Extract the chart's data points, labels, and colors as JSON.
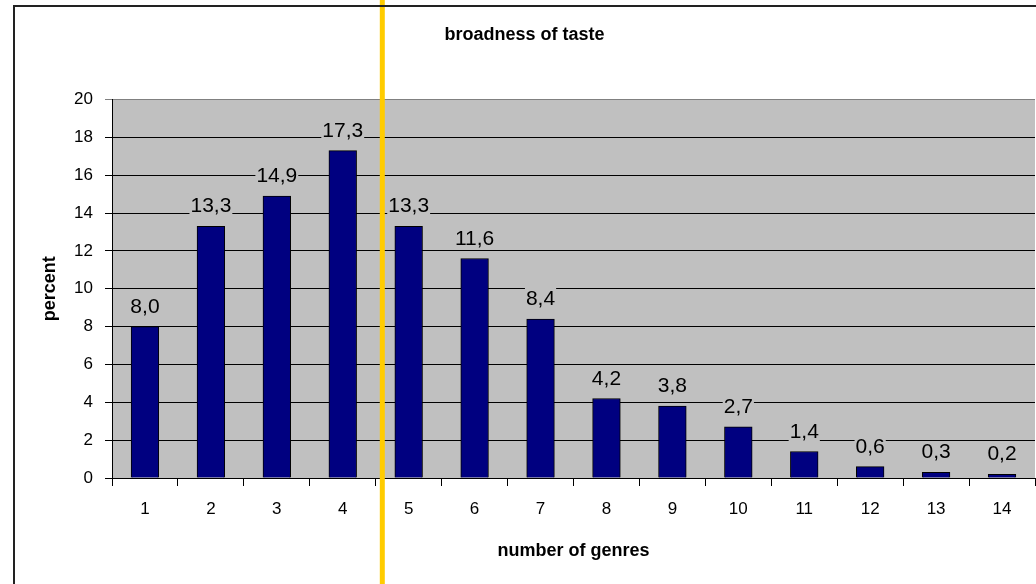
{
  "chart_data": {
    "type": "bar",
    "title": "broadness of taste",
    "xlabel": "number of genres",
    "ylabel": "percent",
    "x": [
      1,
      2,
      3,
      4,
      5,
      6,
      7,
      8,
      9,
      10,
      11,
      12,
      13,
      14
    ],
    "values": [
      8.0,
      13.3,
      14.9,
      17.3,
      13.3,
      11.6,
      8.4,
      4.2,
      3.8,
      2.7,
      1.4,
      0.6,
      0.3,
      0.2
    ],
    "value_labels": [
      "8,0",
      "13,3",
      "14,9",
      "17,3",
      "13,3",
      "11,6",
      "8,4",
      "4,2",
      "3,8",
      "2,7",
      "1,4",
      "0,6",
      "0,3",
      "0,2"
    ],
    "color": "#000080",
    "xlim": [
      0.5,
      14.5
    ],
    "xticks": [
      {
        "value": 0.5,
        "label": null
      },
      1,
      {
        "value": 1.5,
        "label": null
      },
      2,
      {
        "value": 2.5,
        "label": null
      },
      3,
      {
        "value": 3.5,
        "label": null
      },
      4,
      {
        "value": 4.5,
        "label": null
      },
      5,
      {
        "value": 5.5,
        "label": null
      },
      6,
      {
        "value": 6.5,
        "label": null
      },
      7,
      {
        "value": 7.5,
        "label": null
      },
      8,
      {
        "value": 8.5,
        "label": null
      },
      9,
      {
        "value": 9.5,
        "label": null
      },
      10,
      {
        "value": 10.5,
        "label": null
      },
      11,
      {
        "value": 11.5,
        "label": null
      },
      12,
      {
        "value": 12.5,
        "label": null
      },
      13,
      {
        "value": 13.5,
        "label": null
      },
      14,
      {
        "value": 14.5,
        "label": null
      }
    ],
    "ylim": [
      0,
      20
    ],
    "yticks": [
      0,
      2,
      4,
      6,
      8,
      10,
      12,
      14,
      16,
      18,
      20
    ],
    "grid": "y",
    "ref_lines": [
      {
        "axis": "x",
        "value": 4.6,
        "color": "#ffcc00"
      }
    ]
  }
}
